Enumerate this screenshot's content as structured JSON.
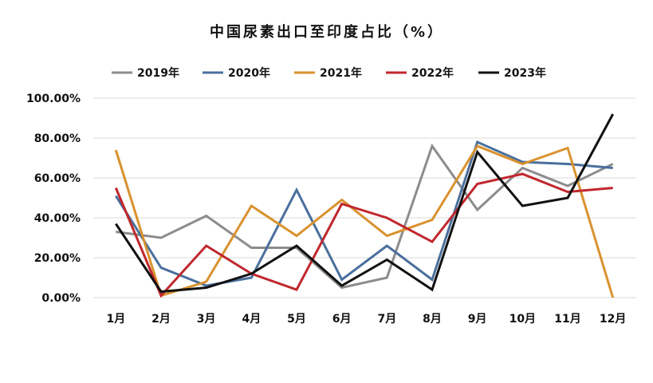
{
  "chart_data": {
    "type": "line",
    "title": "中国尿素出口至印度占比（%）",
    "categories": [
      "1月",
      "2月",
      "3月",
      "4月",
      "5月",
      "6月",
      "7月",
      "8月",
      "9月",
      "10月",
      "11月",
      "12月"
    ],
    "y_ticks": [
      "0.00%",
      "20.00%",
      "40.00%",
      "60.00%",
      "80.00%",
      "100.00%"
    ],
    "ylim": [
      0,
      100
    ],
    "grid": "horizontal",
    "legend": "top",
    "series": [
      {
        "name": "2019年",
        "color": "#8c8c8c",
        "values": [
          33,
          30,
          41,
          25,
          25,
          5,
          10,
          76,
          44,
          65,
          56,
          67
        ]
      },
      {
        "name": "2020年",
        "color": "#4a6f9c",
        "values": [
          51,
          15,
          6,
          10,
          54,
          9,
          26,
          9,
          78,
          68,
          67,
          65
        ]
      },
      {
        "name": "2021年",
        "color": "#d9922e",
        "values": [
          74,
          1,
          8,
          46,
          31,
          49,
          31,
          39,
          76,
          67,
          75,
          0
        ]
      },
      {
        "name": "2022年",
        "color": "#c0272d",
        "values": [
          55,
          1,
          26,
          12,
          4,
          47,
          40,
          28,
          57,
          62,
          53,
          55
        ]
      },
      {
        "name": "2023年",
        "color": "#111111",
        "values": [
          37,
          3,
          5,
          12,
          26,
          6,
          19,
          4,
          73,
          46,
          50,
          92
        ]
      }
    ]
  }
}
